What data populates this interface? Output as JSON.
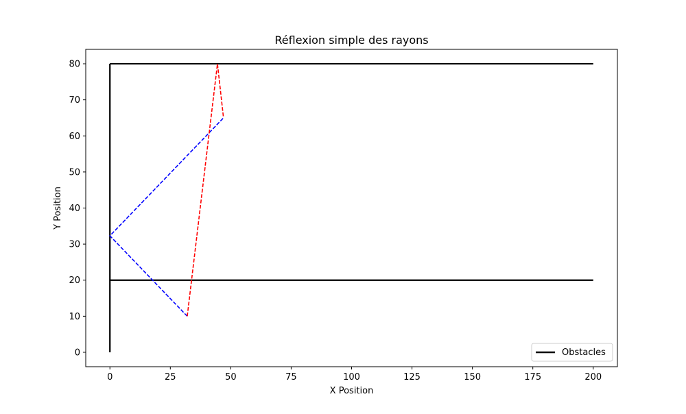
{
  "chart_data": {
    "type": "line",
    "title": "Réflexion simple des rayons",
    "xlabel": "X Position",
    "ylabel": "Y Position",
    "xlim": [
      -10,
      210
    ],
    "ylim": [
      -4,
      84
    ],
    "xticks": [
      0,
      25,
      50,
      75,
      100,
      125,
      150,
      175,
      200
    ],
    "yticks": [
      0,
      10,
      20,
      30,
      40,
      50,
      60,
      70,
      80
    ],
    "grid": false,
    "legend": {
      "placement": "lower-right",
      "entries": [
        {
          "label": "Obstacles",
          "color": "#000000",
          "style": "solid"
        }
      ]
    },
    "series": [
      {
        "name": "Obstacles",
        "color": "#000000",
        "style": "solid",
        "segments": [
          [
            [
              0,
              0
            ],
            [
              0,
              80
            ]
          ],
          [
            [
              0,
              80
            ],
            [
              200,
              80
            ]
          ],
          [
            [
              0,
              20
            ],
            [
              200,
              20
            ]
          ]
        ]
      },
      {
        "color": "#0000ff",
        "style": "dashed",
        "points": [
          [
            32,
            10
          ],
          [
            0,
            32.3
          ],
          [
            47,
            65
          ]
        ]
      },
      {
        "color": "#ff0000",
        "style": "dashed",
        "points": [
          [
            32,
            10
          ],
          [
            44.5,
            80
          ],
          [
            47,
            65
          ]
        ]
      }
    ]
  }
}
